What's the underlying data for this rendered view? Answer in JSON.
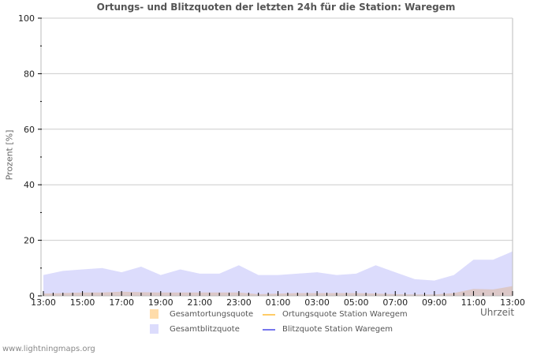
{
  "title": "Ortungs- und Blitzquoten der letzten 24h für die Station: Waregem",
  "axes": {
    "ylabel": "Prozent   [%]",
    "xlabel": "Uhrzeit",
    "yticks": [
      "0",
      "20",
      "40",
      "60",
      "80",
      "100"
    ],
    "xticks": [
      "13:00",
      "15:00",
      "17:00",
      "19:00",
      "21:00",
      "23:00",
      "01:00",
      "03:00",
      "05:00",
      "07:00",
      "09:00",
      "11:00",
      "13:00"
    ]
  },
  "legend": {
    "items": [
      {
        "label": "Gesamtortungsquote",
        "kind": "area",
        "color": "#ffdcaa"
      },
      {
        "label": "Ortungsquote Station Waregem",
        "kind": "line",
        "color": "#ffcc66"
      },
      {
        "label": "Gesamtblitzquote",
        "kind": "area",
        "color": "#dcdcfc"
      },
      {
        "label": "Blitzquote Station Waregem",
        "kind": "line",
        "color": "#7777ee"
      }
    ]
  },
  "footer": "www.lightningmaps.org",
  "colors": {
    "blitz_fill": "#dcdcfc",
    "ortung_fill": "#dcc8c8",
    "grid": "#cccccc",
    "axis": "#bbbbbb"
  },
  "chart_data": {
    "type": "area",
    "title": "Ortungs- und Blitzquoten der letzten 24h für die Station: Waregem",
    "xlabel": "Uhrzeit",
    "ylabel": "Prozent [%]",
    "ylim": [
      0,
      100
    ],
    "grid": true,
    "legend_position": "bottom",
    "x": [
      "13:00",
      "14:00",
      "15:00",
      "16:00",
      "17:00",
      "18:00",
      "19:00",
      "20:00",
      "21:00",
      "22:00",
      "23:00",
      "00:00",
      "01:00",
      "02:00",
      "03:00",
      "04:00",
      "05:00",
      "06:00",
      "07:00",
      "08:00",
      "09:00",
      "10:00",
      "11:00",
      "12:00",
      "13:00"
    ],
    "series": [
      {
        "name": "Gesamtblitzquote",
        "values": [
          7.5,
          9,
          9.5,
          10,
          8.5,
          10.5,
          7.5,
          9.5,
          8,
          8,
          11,
          7.5,
          7.5,
          8,
          8.5,
          7.5,
          8,
          11,
          8.5,
          6,
          5.5,
          7.5,
          13,
          13,
          16
        ]
      },
      {
        "name": "Gesamtortungsquote",
        "values": [
          0.8,
          1,
          1.2,
          1.2,
          1.5,
          1.3,
          1.2,
          1.2,
          1.2,
          1.2,
          1.2,
          0.6,
          0.8,
          1,
          1,
          1,
          1,
          0.8,
          0.6,
          0.5,
          0.5,
          1,
          2.5,
          2.3,
          3.5
        ]
      },
      {
        "name": "Ortungsquote Station Waregem",
        "values": []
      },
      {
        "name": "Blitzquote Station Waregem",
        "values": []
      }
    ]
  }
}
